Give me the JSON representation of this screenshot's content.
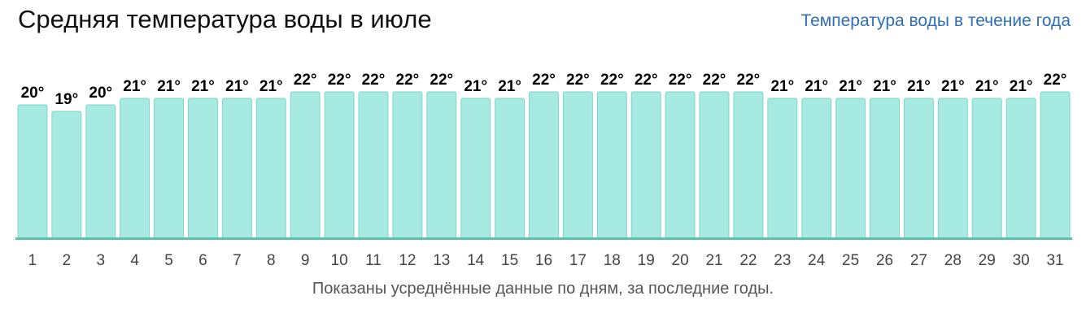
{
  "title": "Средняя температура воды в июле",
  "year_link": "Температура воды в течение года",
  "footnote": "Показаны усреднённые данные по дням, за последние годы.",
  "colors": {
    "bar_fill": "#a6eae1",
    "bar_stroke": "#7fd6c9",
    "baseline": "#5dbfae",
    "value_label": "#000000",
    "day_label": "#444444",
    "link": "#2f6fba"
  },
  "chart_data": {
    "type": "bar",
    "title": "Средняя температура воды в июле",
    "xlabel": "",
    "ylabel": "",
    "unit": "°",
    "grid": false,
    "categories": [
      "1",
      "2",
      "3",
      "4",
      "5",
      "6",
      "7",
      "8",
      "9",
      "10",
      "11",
      "12",
      "13",
      "14",
      "15",
      "16",
      "17",
      "18",
      "19",
      "20",
      "21",
      "22",
      "23",
      "24",
      "25",
      "26",
      "27",
      "28",
      "29",
      "30",
      "31"
    ],
    "values": [
      20,
      19,
      20,
      21,
      21,
      21,
      21,
      21,
      22,
      22,
      22,
      22,
      22,
      21,
      21,
      22,
      22,
      22,
      22,
      22,
      22,
      22,
      21,
      21,
      21,
      21,
      21,
      21,
      21,
      21,
      22
    ],
    "value_labels": [
      "20°",
      "19°",
      "20°",
      "21°",
      "21°",
      "21°",
      "21°",
      "21°",
      "22°",
      "22°",
      "22°",
      "22°",
      "22°",
      "21°",
      "21°",
      "22°",
      "22°",
      "22°",
      "22°",
      "22°",
      "22°",
      "22°",
      "21°",
      "21°",
      "21°",
      "21°",
      "21°",
      "21°",
      "21°",
      "21°",
      "22°"
    ]
  }
}
